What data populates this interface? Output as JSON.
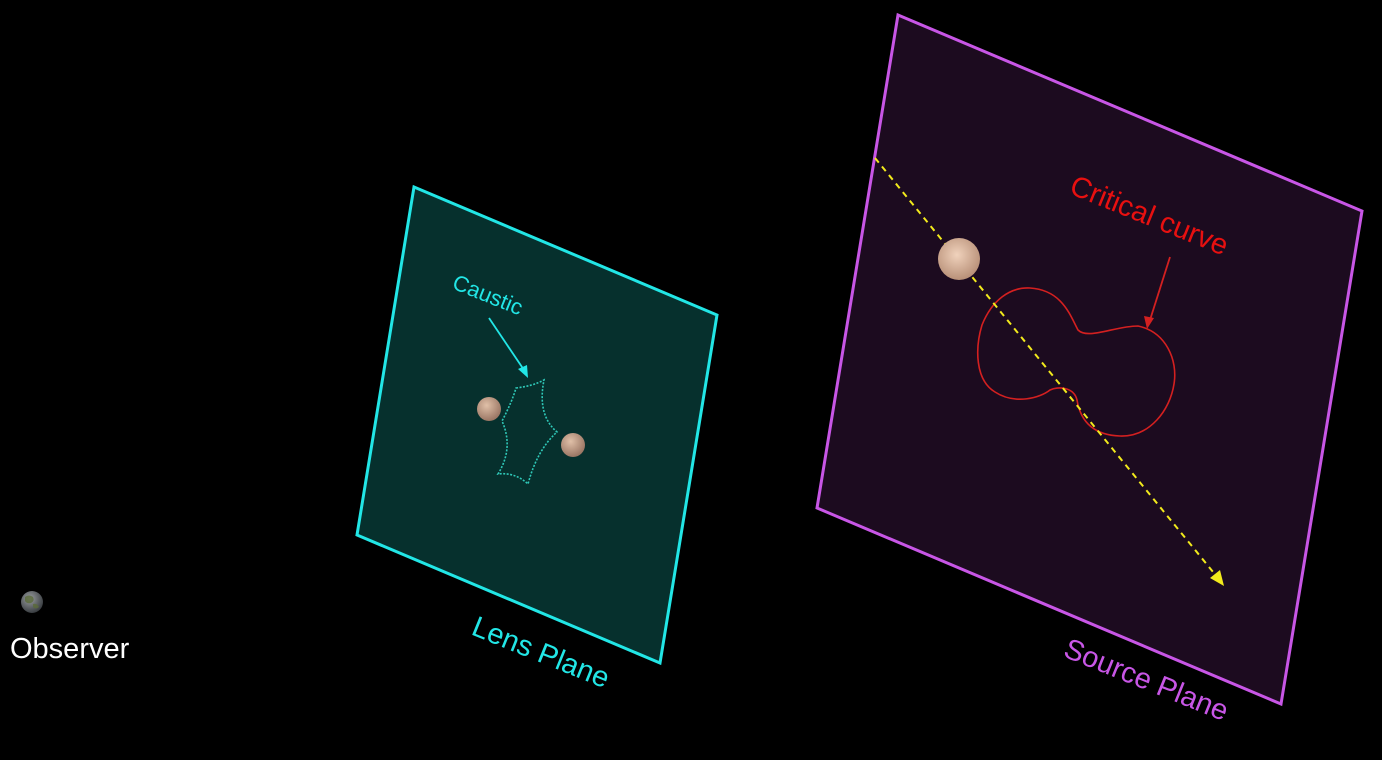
{
  "labels": {
    "observer": "Observer",
    "lens_plane": "Lens Plane",
    "source_plane": "Source Plane",
    "caustic": "Caustic",
    "critical_curve": "Critical curve"
  },
  "colors": {
    "background": "#000000",
    "lens_plane_stroke": "#22e6e6",
    "lens_plane_fill": "#06302d",
    "source_plane_stroke": "#c856e6",
    "source_plane_fill": "#1c0b1f",
    "caustic": "#2fc8b8",
    "critical_curve": "#d42020",
    "ray": "#f2ea1c",
    "observer_text": "#ffffff",
    "lens_mass": "#b8927c",
    "source_body": "#d7b49a"
  }
}
